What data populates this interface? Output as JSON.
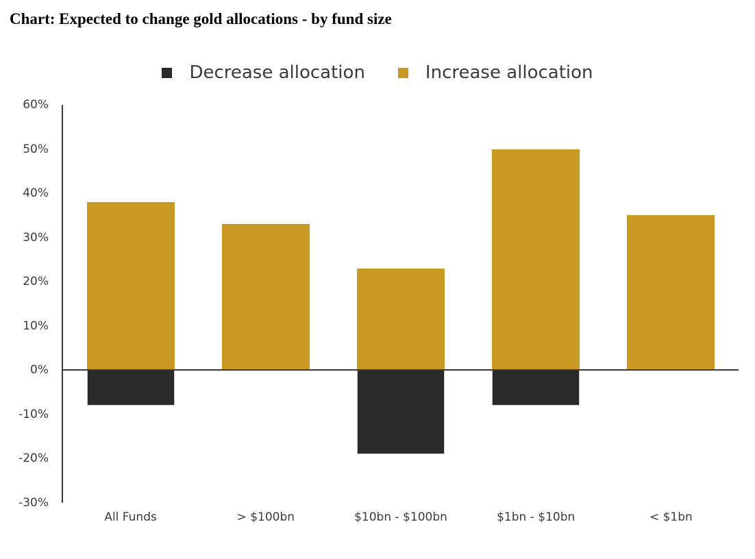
{
  "title": "Chart: Expected to change gold allocations - by fund size",
  "legend": [
    {
      "label": "Decrease allocation",
      "color": "#2a2a2a"
    },
    {
      "label": "Increase allocation",
      "color": "#ca9923"
    }
  ],
  "colors": {
    "increase_bar": "#ca9923",
    "decrease_bar": "#2a2a2a",
    "axis_line": "#3a3a3a",
    "label_text": "#3b3b3b",
    "title_text": "#000000",
    "background": "#ffffff"
  },
  "chart_data": {
    "type": "bar",
    "title": "Chart: Expected to change gold allocations - by fund size",
    "categories": [
      "All Funds",
      "> $100bn",
      "$10bn - $100bn",
      "$1bn - $10bn",
      "< $1bn"
    ],
    "series": [
      {
        "name": "Decrease allocation",
        "color": "#2a2a2a",
        "values": [
          -8,
          0,
          -19,
          -8,
          0
        ]
      },
      {
        "name": "Increase allocation",
        "color": "#ca9923",
        "values": [
          38,
          33,
          23,
          50,
          35
        ]
      }
    ],
    "xlabel": "",
    "ylabel": "",
    "ylim": [
      -30,
      60
    ],
    "ytick_step": 10,
    "ytick_labels": [
      "60%",
      "50%",
      "40%",
      "30%",
      "20%",
      "10%",
      "0%",
      "-10%",
      "-20%",
      "-30%"
    ],
    "grid": false,
    "legend_position": "top-center",
    "bar_width_fraction": 0.13,
    "baseline": 0
  }
}
